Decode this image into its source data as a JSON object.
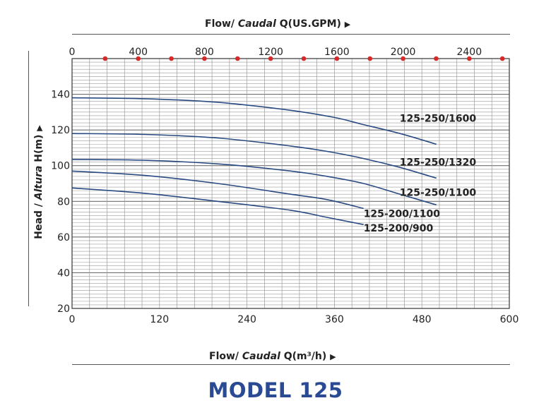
{
  "chart_data": {
    "type": "line",
    "title": "MODEL 125",
    "top_axis": {
      "label_prefix": "Flow/ ",
      "label_italic": "Caudal",
      "label_suffix": " Q(US.GPM)",
      "ticks": [
        "0",
        "400",
        "800",
        "1200",
        "1600",
        "2000",
        "2400"
      ],
      "range": [
        0,
        2642
      ]
    },
    "x_axis": {
      "label_prefix": "Flow/ ",
      "label_italic": "Caudal",
      "label_suffix": " Q(m³/h)",
      "ticks": [
        "0",
        "120",
        "240",
        "360",
        "480",
        "600"
      ],
      "range": [
        0,
        600
      ]
    },
    "y_axis": {
      "label_prefix": "Head / ",
      "label_italic": "Altura",
      "label_suffix": " H(m)",
      "ticks": [
        "20",
        "40",
        "60",
        "80",
        "100",
        "120",
        "140"
      ],
      "range": [
        20,
        160
      ]
    },
    "grid": true,
    "series": [
      {
        "name": "125-250/1600",
        "x": [
          0,
          100,
          200,
          300,
          360,
          400,
          450,
          500
        ],
        "y": [
          138,
          137.5,
          135.5,
          131,
          127,
          123,
          118,
          112
        ]
      },
      {
        "name": "125-250/1320",
        "x": [
          0,
          100,
          200,
          300,
          350,
          400,
          450,
          500
        ],
        "y": [
          118,
          117.5,
          115.5,
          111,
          108,
          104,
          99,
          93
        ]
      },
      {
        "name": "125-250/1100",
        "x": [
          0,
          100,
          200,
          300,
          350,
          400,
          450,
          500
        ],
        "y": [
          103.5,
          103,
          101,
          97,
          94,
          90,
          84,
          78
        ]
      },
      {
        "name": "125-200/1100",
        "x": [
          0,
          100,
          200,
          300,
          350,
          400
        ],
        "y": [
          97,
          94.5,
          90,
          84,
          81,
          76
        ]
      },
      {
        "name": "125-200/900",
        "x": [
          0,
          100,
          200,
          300,
          350,
          400
        ],
        "y": [
          87.5,
          84.5,
          80,
          75,
          71,
          67
        ]
      }
    ],
    "colors": {
      "curve": "#2a4a82",
      "grid": "#9a9a9a",
      "marker": "#d42a2a",
      "title": "#2b4a94"
    }
  }
}
